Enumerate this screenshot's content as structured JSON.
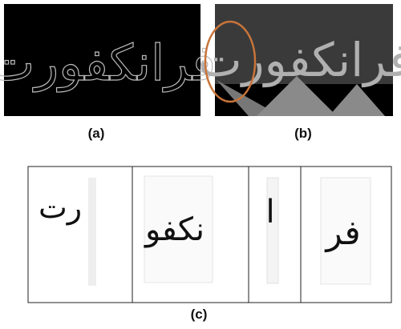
{
  "panels": [
    {
      "caption": "(a)",
      "word": "فرانكفورت"
    },
    {
      "caption": "(b)",
      "word": "فرانكفورت"
    },
    {
      "caption": "(c)",
      "segments": [
        "رت",
        "نكفو",
        "ا",
        "فر"
      ]
    }
  ]
}
